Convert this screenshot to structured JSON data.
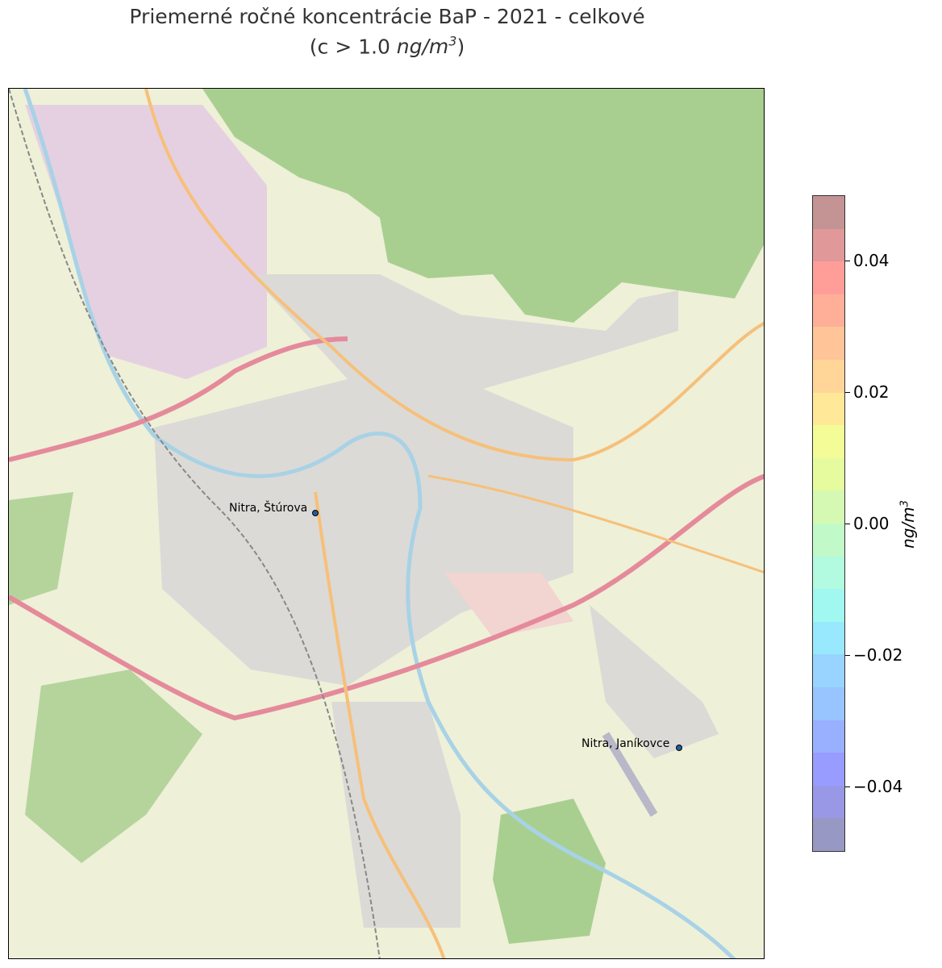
{
  "title": {
    "line1": "Priemerné ročné koncentrácie BaP - 2021 - celkové",
    "line2_prefix": "(c > 1.0 ",
    "line2_unit": "ng/m",
    "line2_sup": "3",
    "line2_suffix": ")"
  },
  "map": {
    "basemap": "OpenStreetMap",
    "stations": [
      {
        "name": "Nitra, Štúrova"
      },
      {
        "name": "Nitra, Janíkovce"
      }
    ],
    "colors": {
      "land": "#eef0d8",
      "forest": "#a9cf90",
      "urban": "#dcdad6",
      "industrial": "#e5d0e2",
      "motorway": "#e58a9b",
      "primary": "#f6c07a",
      "river": "#a8d2e6"
    }
  },
  "colorbar": {
    "label": "ng/m",
    "label_sup": "3",
    "range": [
      -0.05,
      0.05
    ],
    "ticks": [
      {
        "value": 0.04,
        "label": "0.04"
      },
      {
        "value": 0.02,
        "label": "0.02"
      },
      {
        "value": 0.0,
        "label": "0.00"
      },
      {
        "value": -0.02,
        "label": "−0.02"
      },
      {
        "value": -0.04,
        "label": "−0.04"
      }
    ],
    "bands_top_to_bottom": [
      "#c49393",
      "#e19898",
      "#ff9e98",
      "#ffaf98",
      "#ffc498",
      "#ffd698",
      "#ffe898",
      "#f4fc98",
      "#e6fb9e",
      "#d5f9b2",
      "#c2f9c8",
      "#b2fae0",
      "#a0f8f0",
      "#98e8fe",
      "#98d4ff",
      "#98c4ff",
      "#98b0ff",
      "#989cfe",
      "#9898e6",
      "#9898c4"
    ]
  }
}
